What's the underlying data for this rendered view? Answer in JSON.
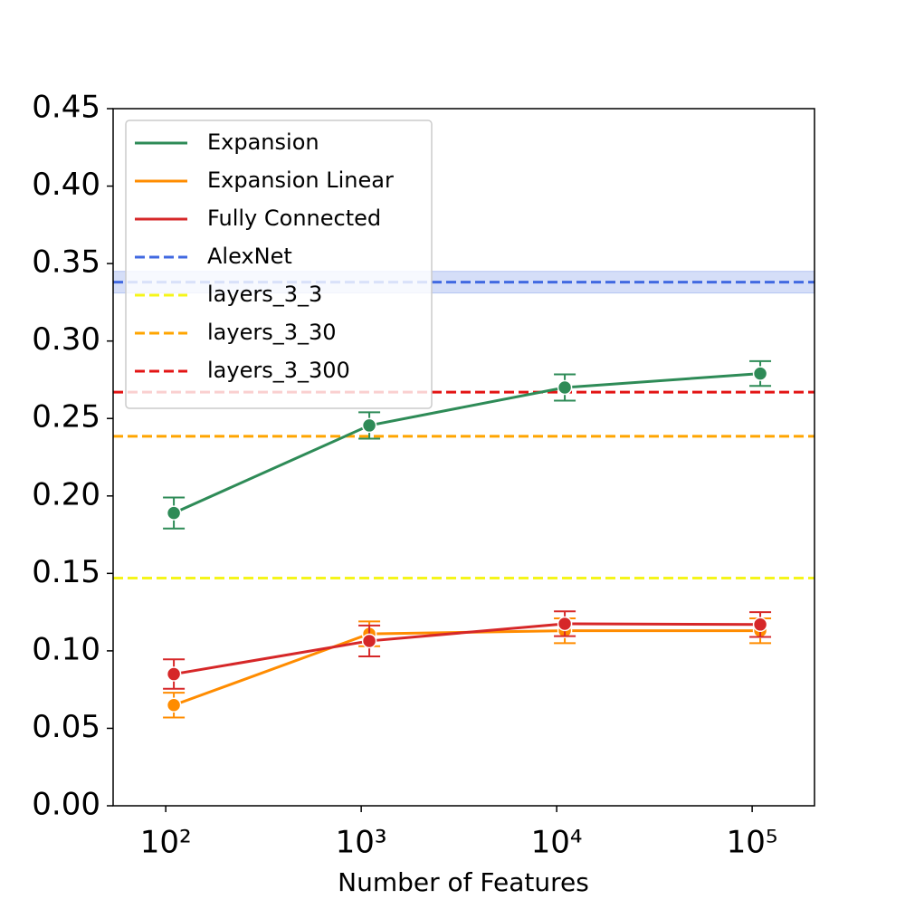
{
  "chart_data": {
    "type": "line",
    "x_label": "Number of Features",
    "x": [
      110,
      1100,
      11000,
      110000
    ],
    "xscale": "log",
    "xlim": [
      53.8,
      208400
    ],
    "xticks": [
      {
        "value": 100,
        "label": "10²"
      },
      {
        "value": 1000,
        "label": "10³"
      },
      {
        "value": 10000,
        "label": "10⁴"
      },
      {
        "value": 100000,
        "label": "10⁵"
      }
    ],
    "ylim": [
      0,
      0.45
    ],
    "yticks": [
      {
        "value": 0,
        "label": "0.00"
      },
      {
        "value": 0.05,
        "label": "0.05"
      },
      {
        "value": 0.1,
        "label": "0.10"
      },
      {
        "value": 0.15,
        "label": "0.15"
      },
      {
        "value": 0.2,
        "label": "0.20"
      },
      {
        "value": 0.25,
        "label": "0.25"
      },
      {
        "value": 0.3,
        "label": "0.30"
      },
      {
        "value": 0.35,
        "label": "0.35"
      },
      {
        "value": 0.4,
        "label": "0.40"
      },
      {
        "value": 0.45,
        "label": "0.45"
      }
    ],
    "legend": "upper left",
    "series": [
      {
        "name": "Expansion",
        "color": "#2e8b57",
        "values": [
          0.189,
          0.2455,
          0.27,
          0.279
        ],
        "errors": [
          0.01,
          0.0085,
          0.0085,
          0.008
        ]
      },
      {
        "name": "Expansion Linear",
        "color": "#ff8c00",
        "values": [
          0.065,
          0.111,
          0.113,
          0.113
        ],
        "errors": [
          0.008,
          0.008,
          0.008,
          0.008
        ]
      },
      {
        "name": "Fully Connected",
        "color": "#d62728",
        "values": [
          0.085,
          0.1064,
          0.1175,
          0.117
        ],
        "errors": [
          0.0095,
          0.01,
          0.008,
          0.008
        ]
      }
    ],
    "reference_lines": [
      {
        "name": "AlexNet",
        "color": "#4169e1",
        "value": 0.338,
        "error": 0.007
      },
      {
        "name": "layers_3_3",
        "color": "#f5f51a",
        "value": 0.147
      },
      {
        "name": "layers_3_30",
        "color": "#ffa500",
        "value": 0.2385
      },
      {
        "name": "layers_3_300",
        "color": "#e31414",
        "value": 0.267
      }
    ]
  }
}
